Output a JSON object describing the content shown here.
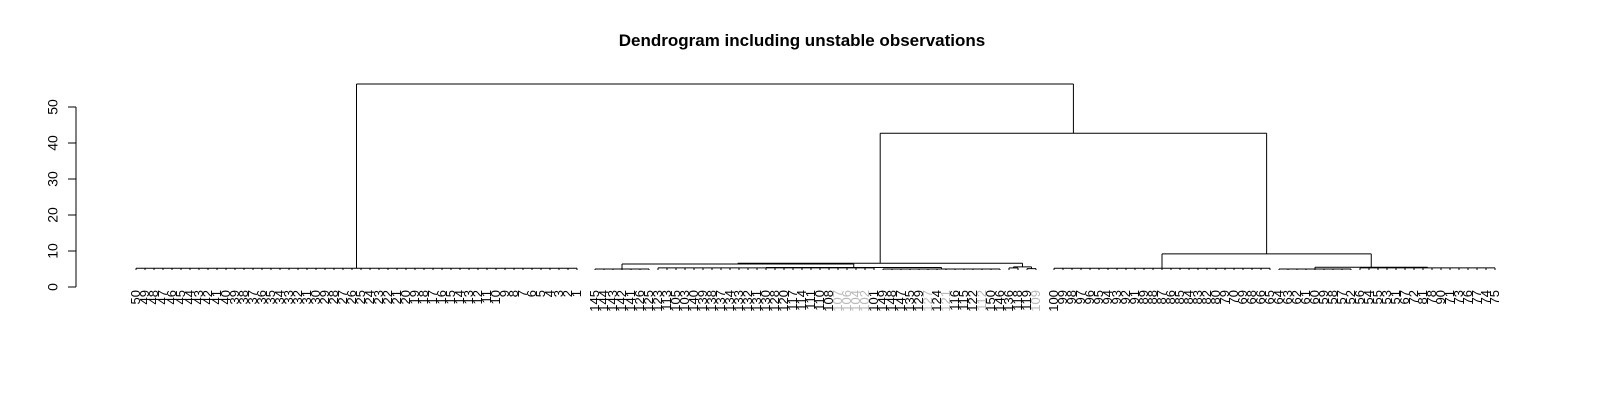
{
  "chart_data": {
    "type": "dendrogram",
    "title": "Dendrogram including unstable observations",
    "y_axis": {
      "ticks": [
        0,
        10,
        20,
        30,
        40,
        50
      ],
      "ylim": [
        0,
        57
      ]
    },
    "leaf_order": [
      "50",
      "49",
      "48",
      "47",
      "46",
      "45",
      "44",
      "43",
      "42",
      "41",
      "40",
      "39",
      "38",
      "37",
      "36",
      "35",
      "34",
      "33",
      "32",
      "31",
      "30",
      "29",
      "28",
      "27",
      "26",
      "25",
      "24",
      "23",
      "22",
      "21",
      "20",
      "19",
      "18",
      "17",
      "16",
      "15",
      "14",
      "13",
      "12",
      "11",
      "10",
      "9",
      "8",
      "7",
      "6",
      "5",
      "4",
      "3",
      "2",
      "1",
      "145",
      "144",
      "143",
      "142",
      "141",
      "126",
      "125",
      "123",
      "113",
      "105",
      "103",
      "140",
      "139",
      "138",
      "137",
      "134",
      "133",
      "132",
      "131",
      "130",
      "128",
      "120",
      "117",
      "114",
      "111",
      "110",
      "108",
      "107",
      "106",
      "104",
      "102",
      "101",
      "149",
      "148",
      "147",
      "135",
      "129",
      "127",
      "124",
      "121",
      "116",
      "115",
      "122",
      "112",
      "150",
      "146",
      "136",
      "118",
      "119",
      "109",
      "100",
      "99",
      "98",
      "97",
      "96",
      "95",
      "94",
      "93",
      "92",
      "91",
      "89",
      "88",
      "87",
      "86",
      "85",
      "84",
      "83",
      "82",
      "80",
      "79",
      "70",
      "69",
      "68",
      "66",
      "65",
      "64",
      "63",
      "62",
      "61",
      "60",
      "59",
      "58",
      "57",
      "52",
      "56",
      "54",
      "55",
      "53",
      "51",
      "67",
      "72",
      "81",
      "78",
      "90",
      "71",
      "73",
      "76",
      "77",
      "74",
      "75"
    ],
    "unstable": [
      "106",
      "107",
      "104",
      "102",
      "127",
      "121",
      "112",
      "109"
    ],
    "merges": [
      {
        "id": "setosa",
        "leaves_from": 0,
        "leaves_to": 49,
        "height": 5.2
      },
      {
        "id": "v2a",
        "leaves_from": 50,
        "leaves_to": 56,
        "height": 5.0
      },
      {
        "id": "v2b",
        "leaves_from": 57,
        "leaves_to": 81,
        "height": 5.3
      },
      {
        "id": "v2c",
        "leaves_from": 82,
        "leaves_to": 95,
        "height": 5.0
      },
      {
        "id": "v2bc",
        "children": [
          "v2b",
          "v2c"
        ],
        "height": 5.4
      },
      {
        "id": "v2abc",
        "children": [
          "v2a",
          "v2bc"
        ],
        "height": 6.4
      },
      {
        "id": "v2d",
        "leaves_from": 96,
        "leaves_to": 97,
        "height": 5.3
      },
      {
        "id": "v2e",
        "leaves_from": 98,
        "leaves_to": 99,
        "height": 5.1
      },
      {
        "id": "v2de",
        "children": [
          "v2d",
          "v2e"
        ],
        "height": 5.6
      },
      {
        "id": "g2",
        "children": [
          "v2abc",
          "v2de"
        ],
        "height": 6.6
      },
      {
        "id": "g3a",
        "leaves_from": 100,
        "leaves_to": 124,
        "height": 5.2
      },
      {
        "id": "g3b",
        "leaves_from": 125,
        "leaves_to": 133,
        "height": 5.0
      },
      {
        "id": "g3c",
        "leaves_from": 134,
        "leaves_to": 149,
        "height": 5.3
      },
      {
        "id": "g3bc",
        "children": [
          "g3b",
          "g3c"
        ],
        "height": 5.5
      },
      {
        "id": "g3",
        "children": [
          "g3a",
          "g3bc"
        ],
        "height": 9.2
      },
      {
        "id": "g23",
        "children": [
          "g2",
          "g3"
        ],
        "height": 42.7
      },
      {
        "id": "root",
        "children": [
          "setosa",
          "g23"
        ],
        "height": 56.4
      }
    ]
  }
}
